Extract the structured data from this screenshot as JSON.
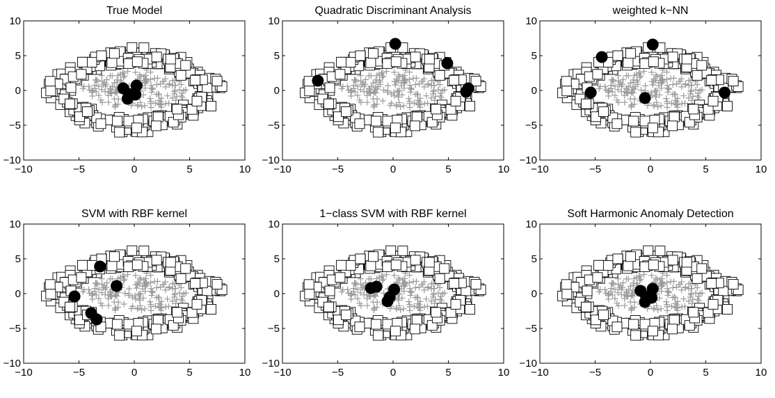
{
  "figure": {
    "panel_count": 6,
    "layout": "2 rows x 3 columns"
  },
  "style": {
    "inlier_color": "#9a9a9a",
    "anomaly_color": "#000000",
    "axis_color": "#000000"
  },
  "chart_data": [
    {
      "type": "scatter",
      "title": "True Model",
      "xlim": [
        -10,
        10
      ],
      "ylim": [
        -10,
        10
      ],
      "xticks": [
        -10,
        -5,
        0,
        5,
        10
      ],
      "yticks": [
        10,
        5,
        0,
        -5,
        -10
      ],
      "grid": false,
      "markers": {
        "ring": "open square",
        "cluster": "plus",
        "anomaly": "filled circle"
      },
      "anomalies": [
        [
          -1.0,
          0.3
        ],
        [
          0.2,
          0.7
        ],
        [
          -0.5,
          -0.5
        ],
        [
          0.1,
          -0.6
        ],
        [
          -0.6,
          -1.2
        ]
      ]
    },
    {
      "type": "scatter",
      "title": "Quadratic Discriminant Analysis",
      "xlim": [
        -10,
        10
      ],
      "ylim": [
        -10,
        10
      ],
      "xticks": [
        -10,
        -5,
        0,
        5,
        10
      ],
      "yticks": [
        10,
        5,
        0,
        -5,
        -10
      ],
      "grid": false,
      "markers": {
        "ring": "open square",
        "cluster": "plus",
        "anomaly": "filled circle"
      },
      "anomalies": [
        [
          0.2,
          6.7
        ],
        [
          4.9,
          3.9
        ],
        [
          -6.8,
          1.4
        ],
        [
          6.8,
          0.3
        ],
        [
          6.6,
          -0.2
        ]
      ]
    },
    {
      "type": "scatter",
      "title": "weighted k−NN",
      "xlim": [
        -10,
        10
      ],
      "ylim": [
        -10,
        10
      ],
      "xticks": [
        -10,
        -5,
        0,
        5,
        10
      ],
      "yticks": [
        10,
        5,
        0,
        -5,
        -10
      ],
      "grid": false,
      "markers": {
        "ring": "open square",
        "cluster": "plus",
        "anomaly": "filled circle"
      },
      "anomalies": [
        [
          0.2,
          6.6
        ],
        [
          -4.4,
          4.8
        ],
        [
          -5.4,
          -0.3
        ],
        [
          -0.5,
          -1.1
        ],
        [
          6.7,
          -0.3
        ]
      ]
    },
    {
      "type": "scatter",
      "title": "SVM with RBF kernel",
      "xlim": [
        -10,
        10
      ],
      "ylim": [
        -10,
        10
      ],
      "xticks": [
        -10,
        -5,
        0,
        5,
        10
      ],
      "yticks": [
        10,
        5,
        0,
        -5,
        -10
      ],
      "grid": false,
      "markers": {
        "ring": "open square",
        "cluster": "plus",
        "anomaly": "filled circle"
      },
      "anomalies": [
        [
          -3.1,
          3.9
        ],
        [
          -1.6,
          1.1
        ],
        [
          -5.4,
          -0.4
        ],
        [
          -3.9,
          -2.8
        ],
        [
          -3.4,
          -3.7
        ]
      ]
    },
    {
      "type": "scatter",
      "title": "1−class SVM with RBF kernel",
      "xlim": [
        -10,
        10
      ],
      "ylim": [
        -10,
        10
      ],
      "xticks": [
        -10,
        -5,
        0,
        5,
        10
      ],
      "yticks": [
        10,
        5,
        0,
        -5,
        -10
      ],
      "grid": false,
      "markers": {
        "ring": "open square",
        "cluster": "plus",
        "anomaly": "filled circle"
      },
      "anomalies": [
        [
          -2.0,
          0.8
        ],
        [
          -1.5,
          1.0
        ],
        [
          0.1,
          0.6
        ],
        [
          -0.3,
          -0.5
        ],
        [
          -0.5,
          -1.1
        ]
      ]
    },
    {
      "type": "scatter",
      "title": "Soft Harmonic Anomaly Detection",
      "xlim": [
        -10,
        10
      ],
      "ylim": [
        -10,
        10
      ],
      "xticks": [
        -10,
        -5,
        0,
        5,
        10
      ],
      "yticks": [
        10,
        5,
        0,
        -5,
        -10
      ],
      "grid": false,
      "markers": {
        "ring": "open square",
        "cluster": "plus",
        "anomaly": "filled circle"
      },
      "anomalies": [
        [
          -0.9,
          0.4
        ],
        [
          0.2,
          0.7
        ],
        [
          -0.4,
          -0.4
        ],
        [
          0.1,
          -0.6
        ],
        [
          -0.5,
          -1.2
        ]
      ]
    }
  ]
}
